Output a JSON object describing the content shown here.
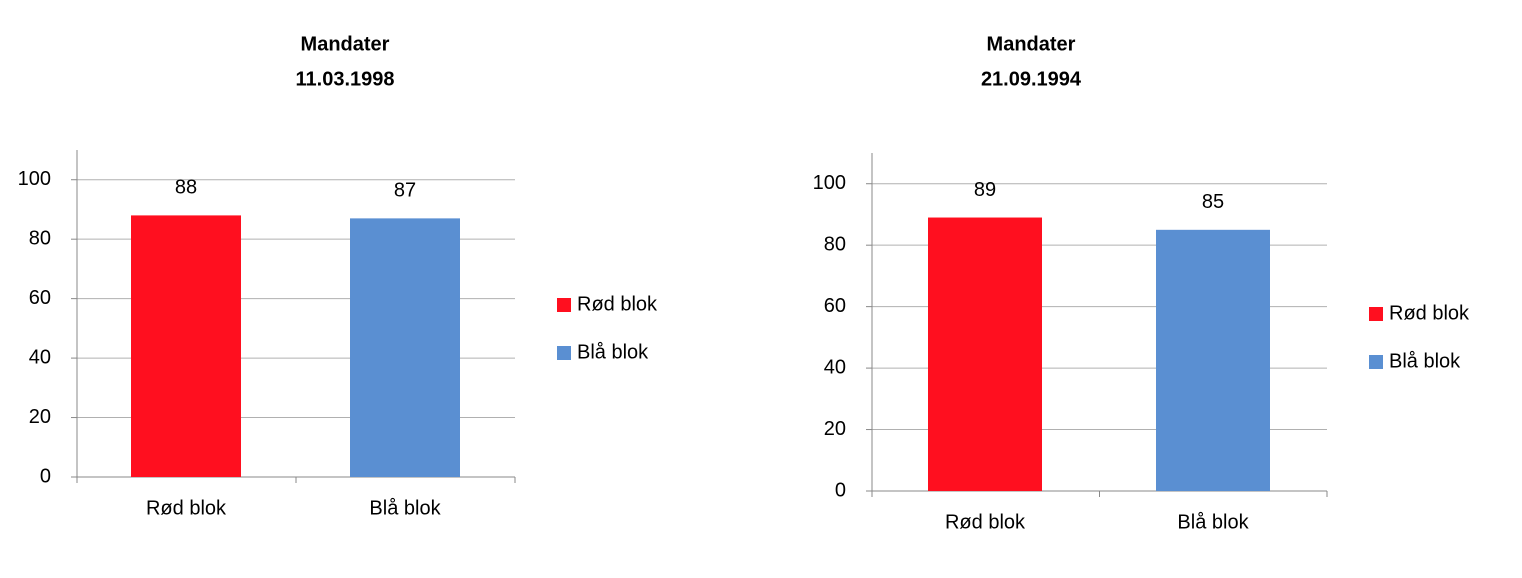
{
  "chart_data": [
    {
      "type": "bar",
      "title": "Mandater",
      "subtitle": "11.03.1998",
      "categories": [
        "Rød blok",
        "Blå blok"
      ],
      "values": [
        88,
        87
      ],
      "colors": [
        "#ff0f1f",
        "#5a8fd2"
      ],
      "ylim": [
        0,
        110
      ],
      "yticks": [
        0,
        20,
        40,
        60,
        80,
        100
      ],
      "grid": true,
      "legend": "right"
    },
    {
      "type": "bar",
      "title": "Mandater",
      "subtitle": "21.09.1994",
      "categories": [
        "Rød blok",
        "Blå blok"
      ],
      "values": [
        89,
        85
      ],
      "colors": [
        "#ff0f1f",
        "#5a8fd2"
      ],
      "ylim": [
        0,
        110
      ],
      "yticks": [
        0,
        20,
        40,
        60,
        80,
        100
      ],
      "grid": true,
      "legend": "right"
    }
  ]
}
